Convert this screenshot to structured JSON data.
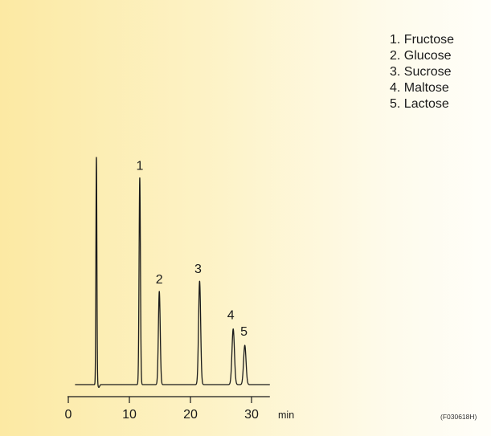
{
  "chart_data": {
    "type": "line",
    "title": "",
    "xlabel": "min",
    "ylabel": "",
    "xlim": [
      0,
      33
    ],
    "ylim": [
      0,
      100
    ],
    "xticks": [
      0,
      10,
      20,
      30
    ],
    "xtick_labels": [
      "0",
      "10",
      "20",
      "30"
    ],
    "grid": false,
    "legend_placement": "top-right",
    "legend": [
      "1. Fructose",
      "2. Glucose",
      "3. Sucrose",
      "4. Maltose",
      "5. Lactose"
    ],
    "series": [
      {
        "peaks": [
          {
            "label": "",
            "time": 4.6,
            "height": 100,
            "width": 0.08
          },
          {
            "label": "1",
            "time": 11.7,
            "height": 91,
            "width": 0.11
          },
          {
            "label": "2",
            "time": 14.9,
            "height": 41,
            "width": 0.15
          },
          {
            "label": "3",
            "time": 21.5,
            "height": 45.5,
            "width": 0.17
          },
          {
            "label": "4",
            "time": 27.0,
            "height": 24.5,
            "width": 0.2
          },
          {
            "label": "5",
            "time": 28.9,
            "height": 17.3,
            "width": 0.2
          }
        ]
      }
    ],
    "color": "#1a1a1a"
  },
  "annotation": {
    "figure_code": "(F030618H)"
  }
}
